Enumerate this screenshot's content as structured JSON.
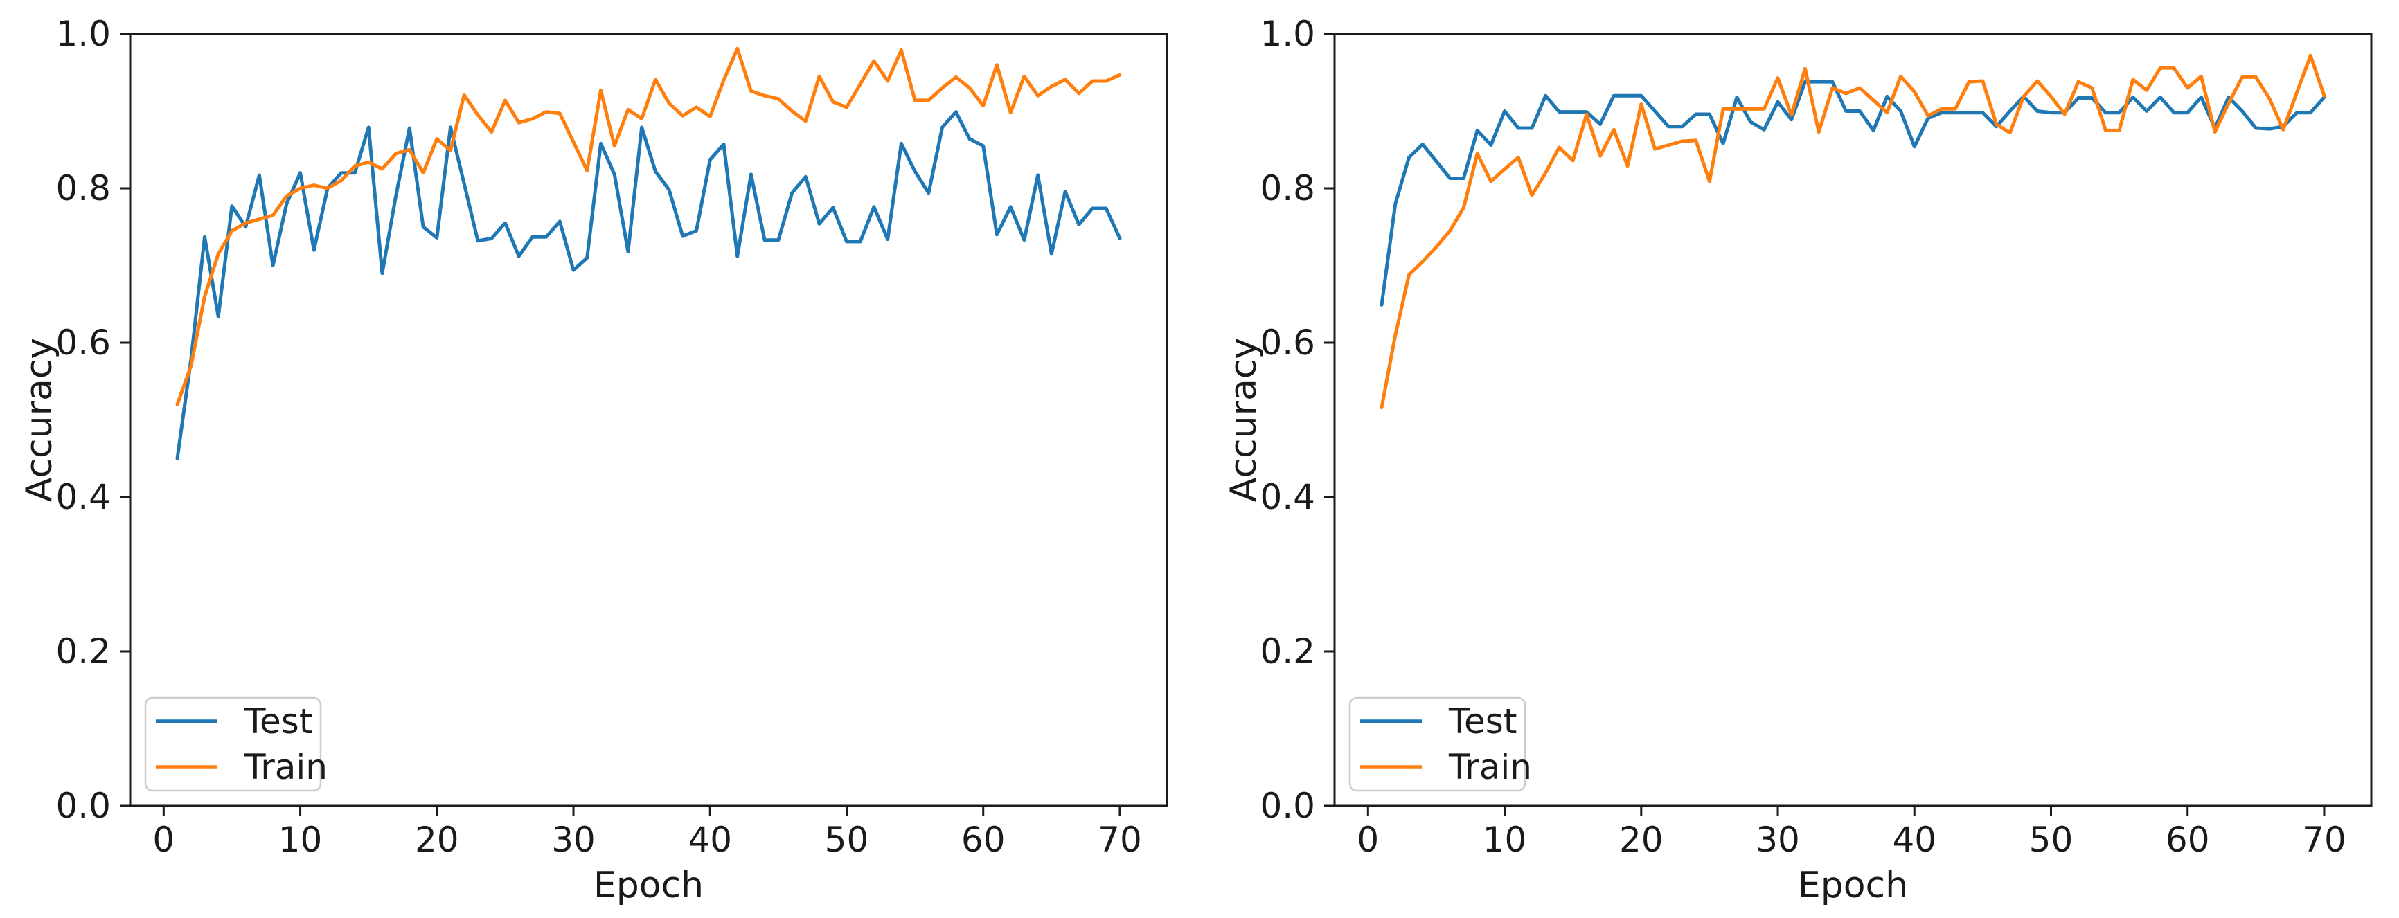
{
  "figure": {
    "background": "#ffffff",
    "n_charts": 2
  },
  "colors": {
    "test_line": "#1f77b4",
    "train_line": "#ff7f0e",
    "axis": "#1a1a1a",
    "legend_border": "#cccccc",
    "legend_background": "#ffffff"
  },
  "chart_data": [
    {
      "type": "line",
      "title": "",
      "xlabel": "Epoch",
      "ylabel": "Accuracy",
      "xlim": [
        -2.45,
        73.45
      ],
      "ylim": [
        0,
        1
      ],
      "xticks": [
        0,
        10,
        20,
        30,
        40,
        50,
        60,
        70
      ],
      "ytick_labels": [
        "0.0",
        "0.2",
        "0.4",
        "0.6",
        "0.8",
        "1.0"
      ],
      "yticks": [
        0,
        0.2,
        0.4,
        0.6,
        0.8,
        1.0
      ],
      "grid": false,
      "legend": {
        "position": "lower left",
        "entries": [
          "Test",
          "Train"
        ]
      },
      "x_start": 1,
      "x_end": 70,
      "series": [
        {
          "name": "Test",
          "color": "#1f77b4",
          "values": [
            0.45,
            0.578,
            0.737,
            0.634,
            0.777,
            0.75,
            0.817,
            0.7,
            0.78,
            0.82,
            0.72,
            0.8,
            0.82,
            0.82,
            0.879,
            0.69,
            0.79,
            0.878,
            0.75,
            0.736,
            0.879,
            0.806,
            0.732,
            0.735,
            0.755,
            0.712,
            0.737,
            0.737,
            0.757,
            0.694,
            0.71,
            0.858,
            0.818,
            0.718,
            0.879,
            0.822,
            0.798,
            0.738,
            0.745,
            0.837,
            0.857,
            0.712,
            0.818,
            0.733,
            0.733,
            0.794,
            0.815,
            0.754,
            0.775,
            0.731,
            0.731,
            0.776,
            0.734,
            0.858,
            0.822,
            0.794,
            0.879,
            0.899,
            0.864,
            0.855,
            0.74,
            0.776,
            0.733,
            0.817,
            0.715,
            0.796,
            0.753,
            0.774,
            0.774,
            0.735
          ]
        },
        {
          "name": "Train",
          "color": "#ff7f0e",
          "values": [
            0.52,
            0.57,
            0.66,
            0.715,
            0.745,
            0.755,
            0.76,
            0.765,
            0.79,
            0.8,
            0.804,
            0.8,
            0.81,
            0.829,
            0.834,
            0.825,
            0.845,
            0.85,
            0.82,
            0.864,
            0.849,
            0.921,
            0.895,
            0.873,
            0.914,
            0.885,
            0.89,
            0.899,
            0.897,
            0.86,
            0.823,
            0.927,
            0.855,
            0.902,
            0.89,
            0.941,
            0.91,
            0.894,
            0.905,
            0.893,
            0.94,
            0.981,
            0.926,
            0.92,
            0.916,
            0.9,
            0.887,
            0.945,
            0.912,
            0.905,
            0.935,
            0.965,
            0.939,
            0.979,
            0.914,
            0.914,
            0.93,
            0.944,
            0.93,
            0.907,
            0.96,
            0.898,
            0.945,
            0.92,
            0.932,
            0.941,
            0.923,
            0.939,
            0.939,
            0.947
          ]
        }
      ]
    },
    {
      "type": "line",
      "title": "",
      "xlabel": "Epoch",
      "ylabel": "Accuracy",
      "xlim": [
        -2.45,
        73.45
      ],
      "ylim": [
        0,
        1
      ],
      "xticks": [
        0,
        10,
        20,
        30,
        40,
        50,
        60,
        70
      ],
      "ytick_labels": [
        "0.0",
        "0.2",
        "0.4",
        "0.6",
        "0.8",
        "1.0"
      ],
      "yticks": [
        0,
        0.2,
        0.4,
        0.6,
        0.8,
        1.0
      ],
      "grid": false,
      "legend": {
        "position": "lower left",
        "entries": [
          "Test",
          "Train"
        ]
      },
      "x_start": 1,
      "x_end": 70,
      "series": [
        {
          "name": "Test",
          "color": "#1f77b4",
          "values": [
            0.649,
            0.78,
            0.84,
            0.857,
            0.835,
            0.813,
            0.813,
            0.875,
            0.856,
            0.9,
            0.878,
            0.878,
            0.92,
            0.899,
            0.899,
            0.899,
            0.883,
            0.92,
            0.92,
            0.92,
            0.9,
            0.88,
            0.88,
            0.896,
            0.896,
            0.858,
            0.918,
            0.886,
            0.876,
            0.912,
            0.889,
            0.938,
            0.938,
            0.938,
            0.9,
            0.9,
            0.875,
            0.919,
            0.9,
            0.854,
            0.891,
            0.898,
            0.898,
            0.898,
            0.898,
            0.88,
            0.9,
            0.919,
            0.9,
            0.898,
            0.898,
            0.917,
            0.917,
            0.898,
            0.898,
            0.918,
            0.9,
            0.918,
            0.898,
            0.898,
            0.918,
            0.878,
            0.918,
            0.9,
            0.878,
            0.877,
            0.88,
            0.898,
            0.898,
            0.918
          ]
        },
        {
          "name": "Train",
          "color": "#ff7f0e",
          "values": [
            0.516,
            0.61,
            0.688,
            0.705,
            0.724,
            0.745,
            0.775,
            0.845,
            0.809,
            0.825,
            0.84,
            0.791,
            0.82,
            0.853,
            0.836,
            0.896,
            0.842,
            0.876,
            0.829,
            0.909,
            0.851,
            0.856,
            0.861,
            0.862,
            0.809,
            0.903,
            0.903,
            0.903,
            0.903,
            0.943,
            0.895,
            0.955,
            0.873,
            0.93,
            0.923,
            0.93,
            0.914,
            0.898,
            0.945,
            0.925,
            0.894,
            0.903,
            0.903,
            0.938,
            0.939,
            0.883,
            0.872,
            0.919,
            0.939,
            0.919,
            0.896,
            0.938,
            0.93,
            0.875,
            0.875,
            0.941,
            0.927,
            0.956,
            0.956,
            0.93,
            0.945,
            0.873,
            0.91,
            0.944,
            0.944,
            0.916,
            0.876,
            0.924,
            0.972,
            0.92
          ]
        }
      ]
    }
  ]
}
